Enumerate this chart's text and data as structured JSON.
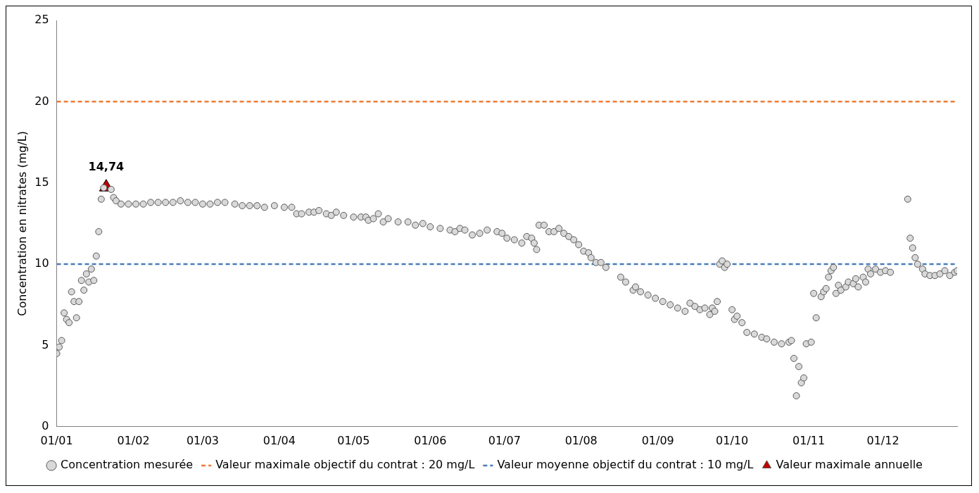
{
  "chart_data": {
    "type": "scatter",
    "ylabel": "Concentration en nitrates (mg/L)",
    "xlim": [
      "--01-01",
      "--12-31"
    ],
    "xticks": [
      {
        "value": "--01-01",
        "label": "01/01"
      },
      {
        "value": "--02-01",
        "label": "01/02"
      },
      {
        "value": "--03-01",
        "label": "01/03"
      },
      {
        "value": "--04-01",
        "label": "01/04"
      },
      {
        "value": "--05-01",
        "label": "01/05"
      },
      {
        "value": "--06-01",
        "label": "01/06"
      },
      {
        "value": "--07-01",
        "label": "01/07"
      },
      {
        "value": "--08-01",
        "label": "01/08"
      },
      {
        "value": "--09-01",
        "label": "01/09"
      },
      {
        "value": "--10-01",
        "label": "01/10"
      },
      {
        "value": "--11-01",
        "label": "01/11"
      },
      {
        "value": "--12-01",
        "label": "01/12"
      }
    ],
    "ylim": [
      0,
      25
    ],
    "yticks": [
      0,
      5,
      10,
      15,
      20,
      25
    ],
    "grid": false,
    "legend": "bottom",
    "ref_lines": [
      {
        "axis": "y",
        "value": 20,
        "label": "Valeur maximale objectif du contrat : 20 mg/L",
        "color": "#ed7d31",
        "line_style": "dashed"
      },
      {
        "axis": "y",
        "value": 10,
        "label": "Valeur moyenne objectif du contrat : 10 mg/L",
        "color": "#4a7ebb",
        "line_style": "dashed"
      }
    ],
    "series": [
      {
        "name": "Concentration mesurée",
        "marker": "circle",
        "color": "#d9d9d9",
        "x": [
          "--01-01",
          "--01-02",
          "--01-03",
          "--01-04",
          "--01-05",
          "--01-06",
          "--01-07",
          "--01-08",
          "--01-09",
          "--01-10",
          "--01-11",
          "--01-12",
          "--01-13",
          "--01-14",
          "--01-15",
          "--01-16",
          "--01-17",
          "--01-18",
          "--01-19",
          "--01-20",
          "--01-23",
          "--01-24",
          "--01-25",
          "--01-27",
          "--01-30",
          "--02-02",
          "--02-05",
          "--02-08",
          "--02-11",
          "--02-14",
          "--02-17",
          "--02-20",
          "--02-23",
          "--02-26",
          "--03-01",
          "--03-04",
          "--03-07",
          "--03-10",
          "--03-14",
          "--03-17",
          "--03-20",
          "--03-23",
          "--03-26",
          "--03-30",
          "--04-03",
          "--04-06",
          "--04-08",
          "--04-10",
          "--04-13",
          "--04-15",
          "--04-17",
          "--04-20",
          "--04-22",
          "--04-24",
          "--04-27",
          "--05-01",
          "--05-04",
          "--05-06",
          "--05-07",
          "--05-09",
          "--05-11",
          "--05-13",
          "--05-15",
          "--05-19",
          "--05-23",
          "--05-26",
          "--05-29",
          "--06-01",
          "--06-05",
          "--06-09",
          "--06-11",
          "--06-13",
          "--06-15",
          "--06-18",
          "--06-21",
          "--06-24",
          "--06-28",
          "--06-30",
          "--07-02",
          "--07-05",
          "--07-08",
          "--07-10",
          "--07-12",
          "--07-13",
          "--07-14",
          "--07-15",
          "--07-17",
          "--07-19",
          "--07-21",
          "--07-23",
          "--07-25",
          "--07-27",
          "--07-29",
          "--07-31",
          "--08-02",
          "--08-04",
          "--08-05",
          "--08-07",
          "--08-09",
          "--08-11",
          "--08-17",
          "--08-19",
          "--08-22",
          "--08-23",
          "--08-25",
          "--08-28",
          "--08-31",
          "--09-03",
          "--09-06",
          "--09-09",
          "--09-12",
          "--09-14",
          "--09-16",
          "--09-18",
          "--09-20",
          "--09-22",
          "--09-23",
          "--09-24",
          "--09-25",
          "--09-26",
          "--09-27",
          "--09-28",
          "--09-29",
          "--10-01",
          "--10-02",
          "--10-03",
          "--10-05",
          "--10-07",
          "--10-10",
          "--10-13",
          "--10-15",
          "--10-18",
          "--10-21",
          "--10-24",
          "--10-25",
          "--10-26",
          "--10-27",
          "--10-28",
          "--10-29",
          "--10-30",
          "--10-31",
          "--11-02",
          "--11-03",
          "--11-04",
          "--11-06",
          "--11-07",
          "--11-08",
          "--11-09",
          "--11-10",
          "--11-11",
          "--11-12",
          "--11-13",
          "--11-14",
          "--11-16",
          "--11-17",
          "--11-19",
          "--11-20",
          "--11-21",
          "--11-23",
          "--11-24",
          "--11-25",
          "--11-26",
          "--11-28",
          "--11-30",
          "--12-02",
          "--12-04",
          "--12-11",
          "--12-12",
          "--12-13",
          "--12-14",
          "--12-15",
          "--12-17",
          "--12-18",
          "--12-20",
          "--12-22",
          "--12-24",
          "--12-26",
          "--12-28",
          "--12-30",
          "--12-31"
        ],
        "values": [
          4.5,
          4.9,
          5.3,
          7.0,
          6.6,
          6.4,
          8.3,
          7.7,
          6.7,
          7.7,
          9.0,
          8.4,
          9.4,
          8.9,
          9.7,
          9.0,
          10.5,
          12.0,
          14.0,
          14.7,
          14.6,
          14.1,
          13.9,
          13.7,
          13.7,
          13.7,
          13.7,
          13.8,
          13.8,
          13.8,
          13.8,
          13.9,
          13.8,
          13.8,
          13.7,
          13.7,
          13.8,
          13.8,
          13.7,
          13.6,
          13.6,
          13.6,
          13.5,
          13.6,
          13.5,
          13.5,
          13.1,
          13.1,
          13.2,
          13.2,
          13.3,
          13.1,
          13.0,
          13.2,
          13.0,
          12.9,
          12.9,
          12.9,
          12.7,
          12.8,
          13.1,
          12.6,
          12.8,
          12.6,
          12.6,
          12.4,
          12.5,
          12.3,
          12.2,
          12.1,
          12.0,
          12.2,
          12.1,
          11.8,
          11.9,
          12.1,
          12.0,
          11.9,
          11.6,
          11.5,
          11.3,
          11.7,
          11.6,
          11.3,
          10.9,
          12.4,
          12.4,
          12.0,
          12.0,
          12.2,
          11.9,
          11.7,
          11.5,
          11.2,
          10.8,
          10.7,
          10.4,
          10.1,
          10.1,
          9.8,
          9.2,
          8.9,
          8.4,
          8.6,
          8.3,
          8.1,
          7.9,
          7.7,
          7.5,
          7.3,
          7.1,
          7.6,
          7.4,
          7.2,
          7.3,
          6.9,
          7.3,
          7.1,
          7.7,
          10.0,
          10.2,
          9.8,
          10.0,
          7.2,
          6.6,
          6.8,
          6.4,
          5.8,
          5.7,
          5.5,
          5.4,
          5.2,
          5.1,
          5.2,
          5.3,
          4.2,
          1.9,
          3.7,
          2.7,
          3.0,
          5.1,
          5.2,
          8.2,
          6.7,
          8.0,
          8.3,
          8.5,
          9.2,
          9.6,
          9.8,
          8.2,
          8.7,
          8.4,
          8.6,
          8.9,
          8.8,
          9.1,
          8.6,
          9.2,
          8.9,
          9.7,
          9.4,
          9.7,
          9.5,
          9.6,
          9.5,
          14.0,
          11.6,
          11.0,
          10.4,
          10.0,
          9.7,
          9.4,
          9.3,
          9.3,
          9.4,
          9.6,
          9.3,
          9.5,
          9.6
        ]
      },
      {
        "name": "Valeur maximale annuelle",
        "marker": "triangle",
        "color": "#c00000",
        "x": [
          "--01-21"
        ],
        "values": [
          14.74
        ],
        "value_labels": [
          "14,74"
        ]
      }
    ]
  }
}
